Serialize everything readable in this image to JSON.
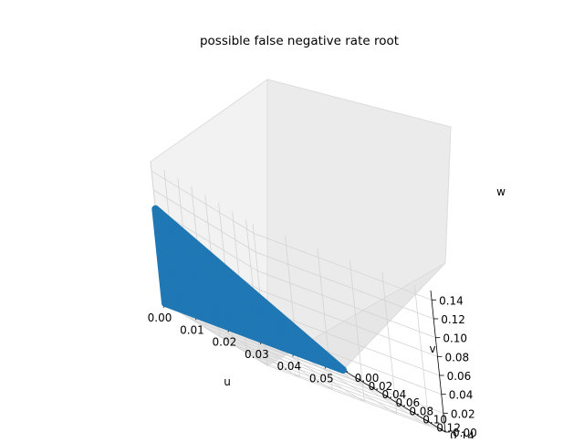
{
  "chart_data": {
    "type": "scatter",
    "projection": "3d",
    "title": "possible false negative rate root",
    "xlabel": "u",
    "ylabel": "v",
    "zlabel": "w",
    "x_ticks": [
      "0.00",
      "0.01",
      "0.02",
      "0.03",
      "0.04",
      "0.05"
    ],
    "y_ticks": [
      "0.00",
      "0.02",
      "0.04",
      "0.06",
      "0.08",
      "0.10",
      "0.12",
      "0.14"
    ],
    "z_ticks": [
      "0.00",
      "0.02",
      "0.04",
      "0.06",
      "0.08",
      "0.10",
      "0.12",
      "0.14"
    ],
    "x_range": [
      0,
      0.055
    ],
    "y_range": [
      0,
      0.15
    ],
    "z_range": [
      0,
      0.15
    ],
    "grid": true,
    "series_color": "#1f77b4",
    "point_region": {
      "description_vertices_uvw": [
        [
          0,
          0,
          0.1
        ],
        [
          0.055,
          0,
          0
        ],
        [
          0,
          0,
          0
        ]
      ],
      "shape": "triangle"
    }
  }
}
